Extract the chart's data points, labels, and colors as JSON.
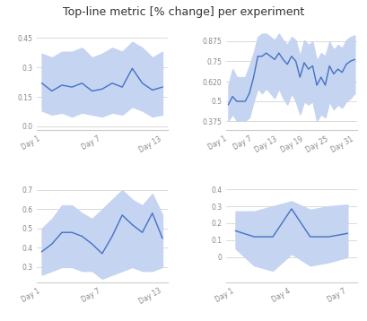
{
  "title": "Top-line metric [% change] per experiment",
  "title_fontsize": 9,
  "line_color": "#4472C4",
  "fill_color": "#c5d4f0",
  "bg_color": "#ffffff",
  "grid_color": "#cccccc",
  "tick_color": "#888888",
  "subplot1": {
    "x": [
      1,
      2,
      3,
      4,
      5,
      6,
      7,
      8,
      9,
      10,
      11,
      12,
      13
    ],
    "y": [
      0.22,
      0.18,
      0.21,
      0.2,
      0.22,
      0.18,
      0.19,
      0.22,
      0.2,
      0.295,
      0.22,
      0.185,
      0.2
    ],
    "y_lower": [
      0.08,
      0.06,
      0.07,
      0.05,
      0.07,
      0.06,
      0.05,
      0.07,
      0.06,
      0.1,
      0.08,
      0.05,
      0.06
    ],
    "y_upper": [
      0.37,
      0.35,
      0.38,
      0.38,
      0.4,
      0.35,
      0.37,
      0.4,
      0.38,
      0.43,
      0.4,
      0.35,
      0.38
    ],
    "xticks": [
      1,
      7,
      13
    ],
    "xticklabels": [
      "Day 1",
      "Day 7",
      "Day 13"
    ],
    "yticks": [
      0.0,
      0.15,
      0.3,
      0.45
    ],
    "yticklabels": [
      "0.0",
      "0.15",
      "0.3",
      "0.45"
    ],
    "ylim": [
      -0.02,
      0.48
    ]
  },
  "subplot2": {
    "x": [
      1,
      2,
      3,
      4,
      5,
      6,
      7,
      8,
      9,
      10,
      11,
      12,
      13,
      14,
      15,
      16,
      17,
      18,
      19,
      20,
      21,
      22,
      23,
      24,
      25,
      26,
      27,
      28,
      29,
      30,
      31
    ],
    "y": [
      0.48,
      0.53,
      0.5,
      0.5,
      0.5,
      0.55,
      0.65,
      0.78,
      0.78,
      0.8,
      0.78,
      0.76,
      0.8,
      0.76,
      0.73,
      0.78,
      0.75,
      0.65,
      0.74,
      0.7,
      0.72,
      0.6,
      0.65,
      0.6,
      0.72,
      0.67,
      0.7,
      0.68,
      0.73,
      0.75,
      0.76
    ],
    "y_lower": [
      0.38,
      0.42,
      0.38,
      0.38,
      0.38,
      0.4,
      0.5,
      0.58,
      0.55,
      0.58,
      0.55,
      0.52,
      0.58,
      0.52,
      0.48,
      0.55,
      0.5,
      0.42,
      0.5,
      0.48,
      0.5,
      0.38,
      0.42,
      0.4,
      0.5,
      0.45,
      0.48,
      0.46,
      0.5,
      0.52,
      0.55
    ],
    "y_upper": [
      0.6,
      0.7,
      0.65,
      0.65,
      0.65,
      0.72,
      0.8,
      0.9,
      0.92,
      0.92,
      0.9,
      0.88,
      0.92,
      0.88,
      0.85,
      0.9,
      0.88,
      0.78,
      0.88,
      0.85,
      0.87,
      0.75,
      0.8,
      0.78,
      0.87,
      0.82,
      0.85,
      0.83,
      0.88,
      0.9,
      0.91
    ],
    "xticks": [
      1,
      7,
      13,
      19,
      25,
      31
    ],
    "xticklabels": [
      "Day 1",
      "Day 7",
      "Day 13",
      "Day 19",
      "Day 25",
      "Day 31"
    ],
    "yticks": [
      0.375,
      0.5,
      0.62,
      0.75,
      0.875
    ],
    "yticklabels": [
      "0.375",
      "0.5",
      "0.620",
      "0.75",
      "0.875"
    ],
    "ylim": [
      0.32,
      0.93
    ]
  },
  "subplot3": {
    "x": [
      1,
      2,
      3,
      4,
      5,
      6,
      7,
      8,
      9,
      10,
      11,
      12,
      13
    ],
    "y": [
      0.38,
      0.42,
      0.48,
      0.48,
      0.46,
      0.42,
      0.37,
      0.46,
      0.57,
      0.52,
      0.48,
      0.58,
      0.45
    ],
    "y_lower": [
      0.26,
      0.28,
      0.3,
      0.3,
      0.28,
      0.28,
      0.24,
      0.26,
      0.28,
      0.3,
      0.28,
      0.28,
      0.3
    ],
    "y_upper": [
      0.5,
      0.55,
      0.62,
      0.62,
      0.58,
      0.55,
      0.6,
      0.65,
      0.7,
      0.65,
      0.62,
      0.68,
      0.57
    ],
    "xticks": [
      1,
      7,
      13
    ],
    "xticklabels": [
      "Day 1",
      "Day 7",
      "Day 13"
    ],
    "yticks": [
      0.3,
      0.4,
      0.5,
      0.6,
      0.7
    ],
    "yticklabels": [
      "0.3",
      "0.4",
      "0.5",
      "0.6",
      "0.7"
    ],
    "ylim": [
      0.22,
      0.73
    ]
  },
  "subplot4": {
    "x": [
      1,
      2,
      3,
      4,
      5,
      6,
      7
    ],
    "y": [
      0.155,
      0.12,
      0.12,
      0.285,
      0.12,
      0.12,
      0.14
    ],
    "y_lower": [
      0.05,
      -0.05,
      -0.08,
      0.02,
      -0.05,
      -0.03,
      0.0
    ],
    "y_upper": [
      0.27,
      0.27,
      0.3,
      0.33,
      0.28,
      0.3,
      0.31
    ],
    "xticks": [
      1,
      4,
      7
    ],
    "xticklabels": [
      "Day 1",
      "Day 4",
      "Day 7"
    ],
    "yticks": [
      0.0,
      0.1,
      0.2,
      0.3,
      0.4
    ],
    "yticklabels": [
      "0",
      "0.1",
      "0.2",
      "0.3",
      "0.4"
    ],
    "ylim": [
      -0.15,
      0.43
    ]
  }
}
